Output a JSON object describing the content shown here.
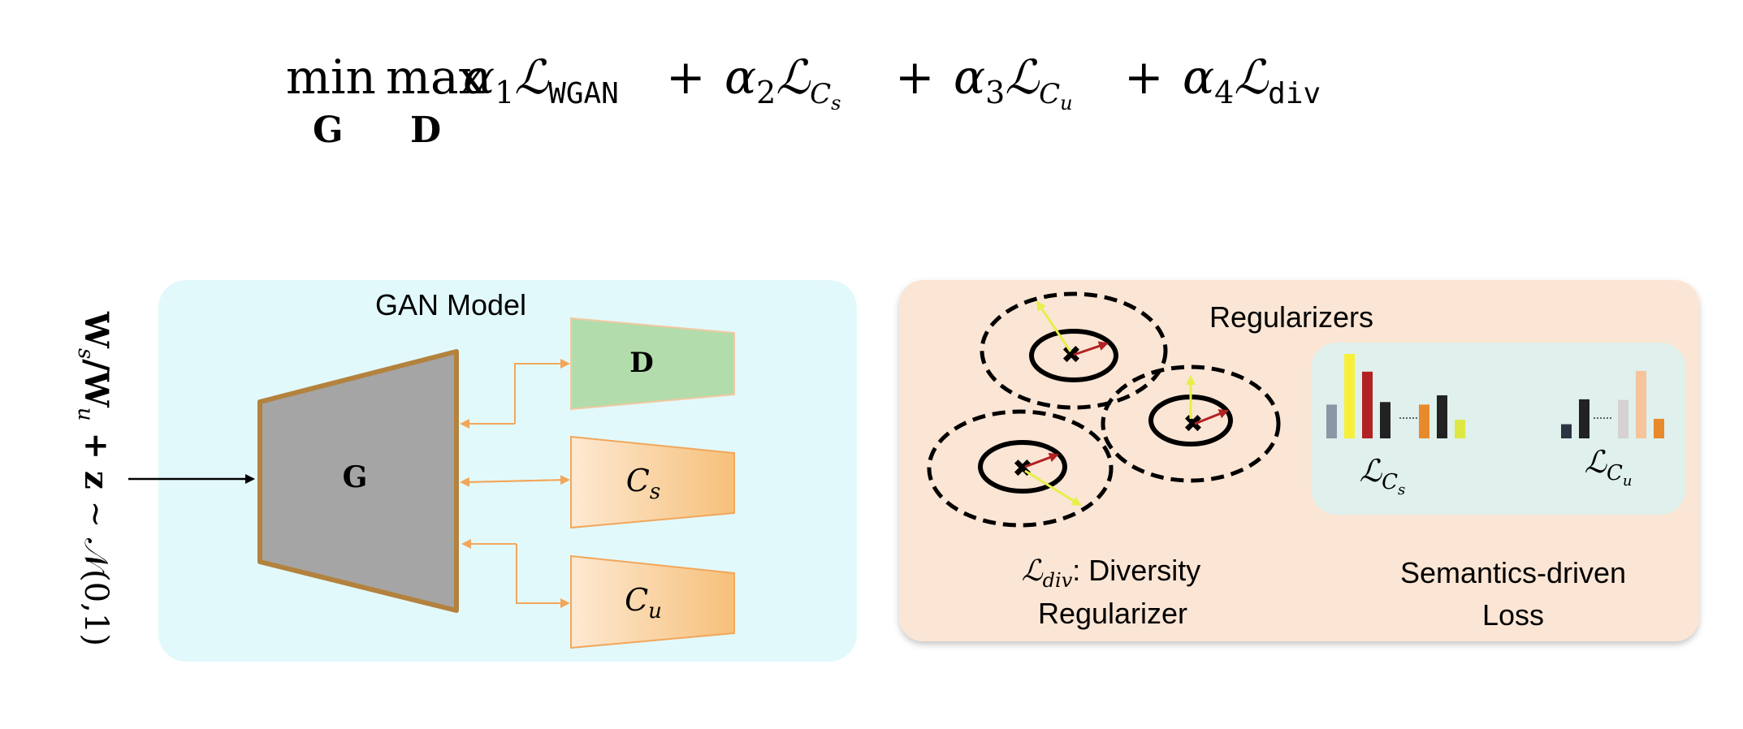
{
  "formula": {
    "min_op": "min",
    "min_sub": "G",
    "max_op": "max",
    "max_sub": "D",
    "terms": [
      {
        "coef": "α",
        "coef_sub": "1",
        "loss": "ℒ",
        "loss_sub": "WGAN",
        "sub_style": "mono"
      },
      {
        "coef": "α",
        "coef_sub": "2",
        "loss": "ℒ",
        "loss_sub": "C",
        "loss_subsub": "s",
        "sub_style": "italic"
      },
      {
        "coef": "α",
        "coef_sub": "3",
        "loss": "ℒ",
        "loss_sub": "C",
        "loss_subsub": "u",
        "sub_style": "italic"
      },
      {
        "coef": "α",
        "coef_sub": "4",
        "loss": "ℒ",
        "loss_sub": "div",
        "sub_style": "mono"
      }
    ],
    "plus": "+"
  },
  "input_label": "W_s/W_u + z ~ 𝒩(0,1)",
  "gan_panel": {
    "title": "GAN Model",
    "generator": "G",
    "discriminator": "D",
    "classifier_seen": {
      "main": "C",
      "sub": "s"
    },
    "classifier_unseen": {
      "main": "C",
      "sub": "u"
    }
  },
  "reg_panel": {
    "title": "Regularizers",
    "diversity_caption": {
      "loss": "ℒ",
      "sub": "div",
      "line1_rest": ": Diversity",
      "line2": "Regularizer"
    },
    "semantic_caption": {
      "line1": "Semantics-driven",
      "line2": "Loss"
    },
    "loss_seen": {
      "main": "ℒ",
      "sub": "C",
      "subsub": "s"
    },
    "loss_unseen": {
      "main": "ℒ",
      "sub": "C",
      "subsub": "u"
    }
  },
  "colors": {
    "gan_panel_bg": "#e2f9fc",
    "reg_panel_bg": "#fbe5d4",
    "semantic_box_bg": "#dff0ed",
    "generator_fill": "#a5a5a5",
    "generator_stroke": "#b3823e",
    "discriminator_fill": "#b2dcab",
    "classifier_fill_light": "#fde9d2",
    "classifier_fill_dark": "#f6c07a",
    "arrow_orange": "#f2a65a",
    "arrow_red": "#b22222",
    "arrow_yellow": "#e7ef4a"
  },
  "bars_seen": [
    {
      "color": "#8a97a6",
      "level": 0.4
    },
    {
      "color": "#f7f03a",
      "level": 1.0
    },
    {
      "color": "#b22222",
      "level": 0.79
    },
    {
      "color": "#222222",
      "level": 0.43
    },
    {
      "color": "#e8892b",
      "level": 0.4
    },
    {
      "color": "#222222",
      "level": 0.51
    },
    {
      "color": "#dfe843",
      "level": 0.22
    }
  ],
  "bars_unseen": [
    {
      "color": "#2b3440",
      "level": 0.21
    },
    {
      "color": "#222222",
      "level": 0.58
    },
    {
      "color": "#d6d2d2",
      "level": 0.57
    },
    {
      "color": "#f7c39a",
      "level": 1.0
    },
    {
      "color": "#e8892b",
      "level": 0.29
    }
  ]
}
